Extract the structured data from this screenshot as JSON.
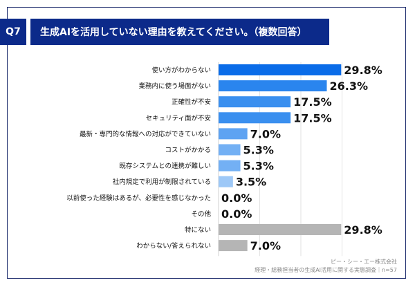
{
  "header": {
    "question": "Q7",
    "title": "生成AIを活用していない理由を教えてください。（複数回答）"
  },
  "source": {
    "company": "ピー・シー・エー株式会社",
    "survey": "経理・総務担当者の生成AI活用に関する実態調査｜n=57"
  },
  "chart_data": {
    "type": "bar",
    "orientation": "horizontal",
    "title": "生成AIを活用していない理由を教えてください。（複数回答）",
    "categories": [
      "使い方がわからない",
      "業務内に使う場面がない",
      "正確性が不安",
      "セキュリティ面が不安",
      "最新・専門的な情報への対応ができていない",
      "コストがかかる",
      "既存システムとの連携が難しい",
      "社内規定で利用が制限されている",
      "以前使った経験はあるが、必要性を感じなかった",
      "その他",
      "特にない",
      "わからない/答えられない"
    ],
    "values": [
      29.8,
      26.3,
      17.5,
      17.5,
      7.0,
      5.3,
      5.3,
      3.5,
      0.0,
      0.0,
      29.8,
      7.0
    ],
    "labels": [
      "29.8%",
      "26.3%",
      "17.5%",
      "17.5%",
      "7.0%",
      "5.3%",
      "5.3%",
      "3.5%",
      "0.0%",
      "0.0%",
      "29.8%",
      "7.0%"
    ],
    "colors": [
      "#0a6ce8",
      "#2a85ee",
      "#3a8fef",
      "#3a8fef",
      "#5ea3f2",
      "#73b0f4",
      "#73b0f4",
      "#9dc8f7",
      "#9dc8f7",
      "#9dc8f7",
      "#b5b5b5",
      "#b5b5b5"
    ],
    "xlim": [
      0,
      30
    ],
    "grid": true,
    "unit": "%"
  }
}
